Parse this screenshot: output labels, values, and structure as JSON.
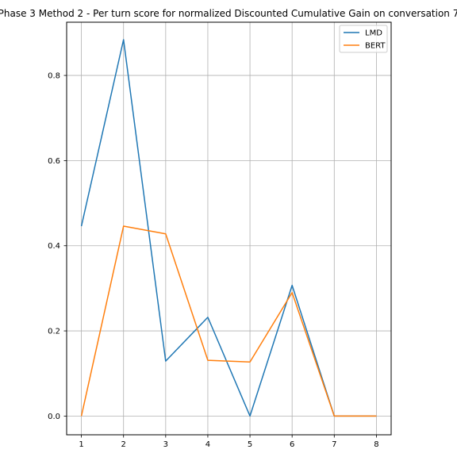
{
  "chart_data": {
    "type": "line",
    "title": "Phase 3 Method 2 - Per turn score for normalized Discounted Cumulative Gain on conversation 7",
    "xlabel": "",
    "ylabel": "",
    "x": [
      1,
      2,
      3,
      4,
      5,
      6,
      7,
      8
    ],
    "xticks": [
      "1",
      "2",
      "3",
      "4",
      "5",
      "6",
      "7",
      "8"
    ],
    "xlim": [
      0.65,
      8.35
    ],
    "yticks": [
      "0.0",
      "0.2",
      "0.4",
      "0.6",
      "0.8"
    ],
    "ytick_values": [
      0.0,
      0.2,
      0.4,
      0.6,
      0.8
    ],
    "ylim": [
      -0.044,
      0.925
    ],
    "grid": true,
    "legend_position": "top-right",
    "series": [
      {
        "name": "LMD",
        "color": "#1f77b4",
        "values": [
          0.446,
          0.884,
          0.129,
          0.232,
          0.0,
          0.307,
          0.0,
          0.0
        ]
      },
      {
        "name": "BERT",
        "color": "#ff7f0e",
        "values": [
          0.0,
          0.446,
          0.428,
          0.131,
          0.127,
          0.29,
          0.0,
          0.0
        ]
      }
    ]
  }
}
